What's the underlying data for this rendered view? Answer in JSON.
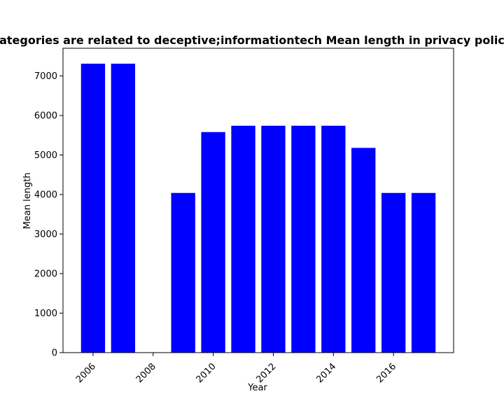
{
  "chart_data": {
    "type": "bar",
    "title": "Categories are related to deceptive;informationtech Mean length in privacy policies",
    "xlabel": "Year",
    "ylabel": "Mean length",
    "x": [
      2006,
      2007,
      2008,
      2009,
      2010,
      2011,
      2012,
      2013,
      2014,
      2015,
      2016,
      2017
    ],
    "values": [
      7310,
      7310,
      0,
      4040,
      5580,
      5740,
      5740,
      5740,
      5740,
      5180,
      4040,
      4040
    ],
    "bar_color": "#0000ff",
    "xlim": [
      2005.0,
      2018.0
    ],
    "ylim": [
      0,
      7700
    ],
    "xticks": [
      2006,
      2008,
      2010,
      2012,
      2014,
      2016
    ],
    "yticks": [
      0,
      1000,
      2000,
      3000,
      4000,
      5000,
      6000,
      7000
    ],
    "grid": false,
    "legend": "none"
  }
}
